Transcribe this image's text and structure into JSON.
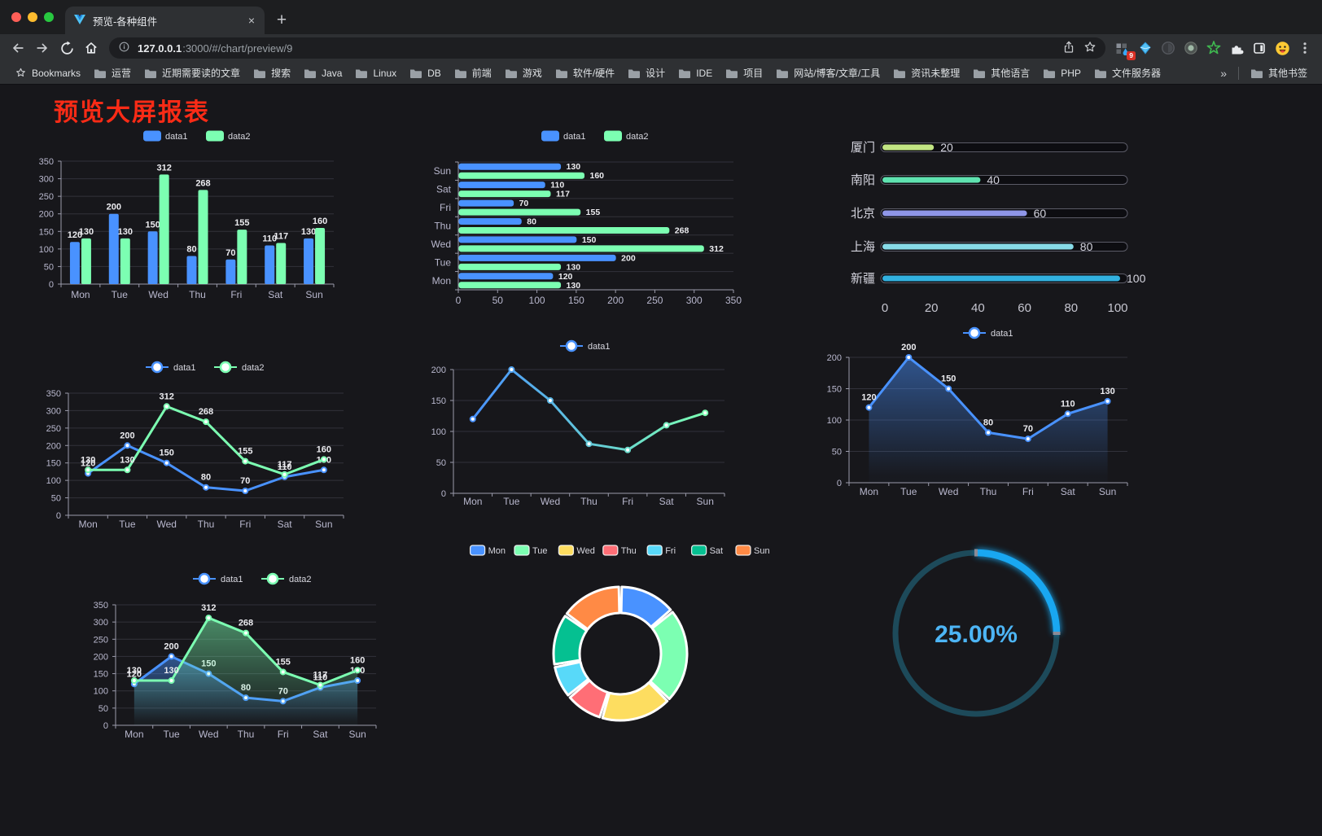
{
  "browser": {
    "tab": {
      "title": "预览-各种组件",
      "close_label": "×",
      "new_tab_label": "+"
    },
    "address": {
      "host": "127.0.0.1",
      "rest": ":3000/#/chart/preview/9"
    },
    "bookmarks": {
      "star_label": "Bookmarks",
      "folders": [
        "运营",
        "近期需要读的文章",
        "搜索",
        "Java",
        "Linux",
        "DB",
        "前端",
        "游戏",
        "软件/硬件",
        "设计",
        "IDE",
        "项目",
        "网站/博客/文章/工具",
        "资讯未整理",
        "其他语言",
        "PHP",
        "文件服务器"
      ],
      "overflow": "»",
      "other": "其他书签"
    },
    "extensions_badge": "9"
  },
  "page": {
    "title": "预览大屏报表",
    "title_color": "#fa2b16",
    "background": "#17171b"
  },
  "palette": {
    "series_blue": "#4992ff",
    "series_green": "#7cffb2",
    "axis_text": "#b9b8ce",
    "value_label": "#ececf0",
    "grid_line": "#32323b",
    "axis_line": "#9b9bab"
  },
  "chart_data": [
    {
      "id": "bar-grouped",
      "type": "bar",
      "categories": [
        "Mon",
        "Tue",
        "Wed",
        "Thu",
        "Fri",
        "Sat",
        "Sun"
      ],
      "series": [
        {
          "name": "data1",
          "color": "#4992ff",
          "values": [
            120,
            200,
            150,
            80,
            70,
            110,
            130
          ]
        },
        {
          "name": "data2",
          "color": "#7cffb2",
          "values": [
            130,
            130,
            312,
            268,
            155,
            117,
            160
          ]
        }
      ],
      "ylim": [
        0,
        350
      ],
      "ytick": 50,
      "legend": [
        "data1",
        "data2"
      ],
      "legend_position": "top",
      "grid": true
    },
    {
      "id": "bar-horizontal",
      "type": "bar-horizontal",
      "categories": [
        "Mon",
        "Tue",
        "Wed",
        "Thu",
        "Fri",
        "Sat",
        "Sun"
      ],
      "series": [
        {
          "name": "data1",
          "color": "#4992ff",
          "values": [
            120,
            200,
            150,
            80,
            70,
            110,
            130
          ]
        },
        {
          "name": "data2",
          "color": "#7cffb2",
          "values": [
            130,
            130,
            312,
            268,
            155,
            117,
            160
          ]
        }
      ],
      "xlim": [
        0,
        350
      ],
      "xtick": 50,
      "legend": [
        "data1",
        "data2"
      ],
      "legend_position": "top"
    },
    {
      "id": "city-progress",
      "type": "progress",
      "categories": [
        "厦门",
        "南阳",
        "北京",
        "上海",
        "新疆"
      ],
      "values": [
        20,
        40,
        60,
        80,
        100
      ],
      "colors": [
        "#c2e583",
        "#5fe3b0",
        "#8f96e8",
        "#87dbe8",
        "#32b1e0"
      ],
      "xlim": [
        0,
        100
      ],
      "xticks": [
        0,
        20,
        40,
        60,
        80,
        100
      ]
    },
    {
      "id": "line-grouped",
      "type": "line",
      "categories": [
        "Mon",
        "Tue",
        "Wed",
        "Thu",
        "Fri",
        "Sat",
        "Sun"
      ],
      "series": [
        {
          "name": "data1",
          "color": "#4992ff",
          "values": [
            120,
            200,
            150,
            80,
            70,
            110,
            130
          ]
        },
        {
          "name": "data2",
          "color": "#7cffb2",
          "values": [
            130,
            130,
            312,
            268,
            155,
            117,
            160
          ]
        }
      ],
      "ylim": [
        0,
        350
      ],
      "ytick": 50,
      "labels": true,
      "legend": [
        "data1",
        "data2"
      ]
    },
    {
      "id": "line-gradient",
      "type": "line",
      "categories": [
        "Mon",
        "Tue",
        "Wed",
        "Thu",
        "Fri",
        "Sat",
        "Sun"
      ],
      "series": [
        {
          "name": "data1",
          "color_gradient": [
            "#4992ff",
            "#7cffb2"
          ],
          "values": [
            120,
            200,
            150,
            80,
            70,
            110,
            130
          ]
        }
      ],
      "ylim": [
        0,
        200
      ],
      "ytick": 50,
      "labels": false,
      "legend": [
        "data1"
      ]
    },
    {
      "id": "area-single",
      "type": "line",
      "area": true,
      "categories": [
        "Mon",
        "Tue",
        "Wed",
        "Thu",
        "Fri",
        "Sat",
        "Sun"
      ],
      "series": [
        {
          "name": "data1",
          "color": "#4992ff",
          "values": [
            120,
            200,
            150,
            80,
            70,
            110,
            130
          ]
        }
      ],
      "ylim": [
        0,
        200
      ],
      "ytick": 50,
      "labels": true,
      "legend": [
        "data1"
      ]
    },
    {
      "id": "area-grouped",
      "type": "line",
      "area": true,
      "categories": [
        "Mon",
        "Tue",
        "Wed",
        "Thu",
        "Fri",
        "Sat",
        "Sun"
      ],
      "series": [
        {
          "name": "data1",
          "color": "#4992ff",
          "values": [
            120,
            200,
            150,
            80,
            70,
            110,
            130
          ]
        },
        {
          "name": "data2",
          "color": "#7cffb2",
          "values": [
            130,
            130,
            312,
            268,
            155,
            117,
            160
          ]
        }
      ],
      "ylim": [
        0,
        350
      ],
      "ytick": 50,
      "labels": true,
      "legend": [
        "data1",
        "data2"
      ]
    },
    {
      "id": "donut",
      "type": "pie",
      "labels": [
        "Mon",
        "Tue",
        "Wed",
        "Thu",
        "Fri",
        "Sat",
        "Sun"
      ],
      "values": [
        120,
        200,
        150,
        80,
        70,
        110,
        130
      ],
      "colors": [
        "#4992ff",
        "#7cffb2",
        "#fddd60",
        "#ff6e76",
        "#58d9f9",
        "#05c091",
        "#ff8a45"
      ],
      "legend_position": "top"
    },
    {
      "id": "gauge",
      "type": "gauge",
      "value": 25,
      "max": 100,
      "display": "25.00%",
      "color": "#19a7f1",
      "track_color": "#1d4a5a",
      "text_color": "#4db5f5"
    }
  ]
}
